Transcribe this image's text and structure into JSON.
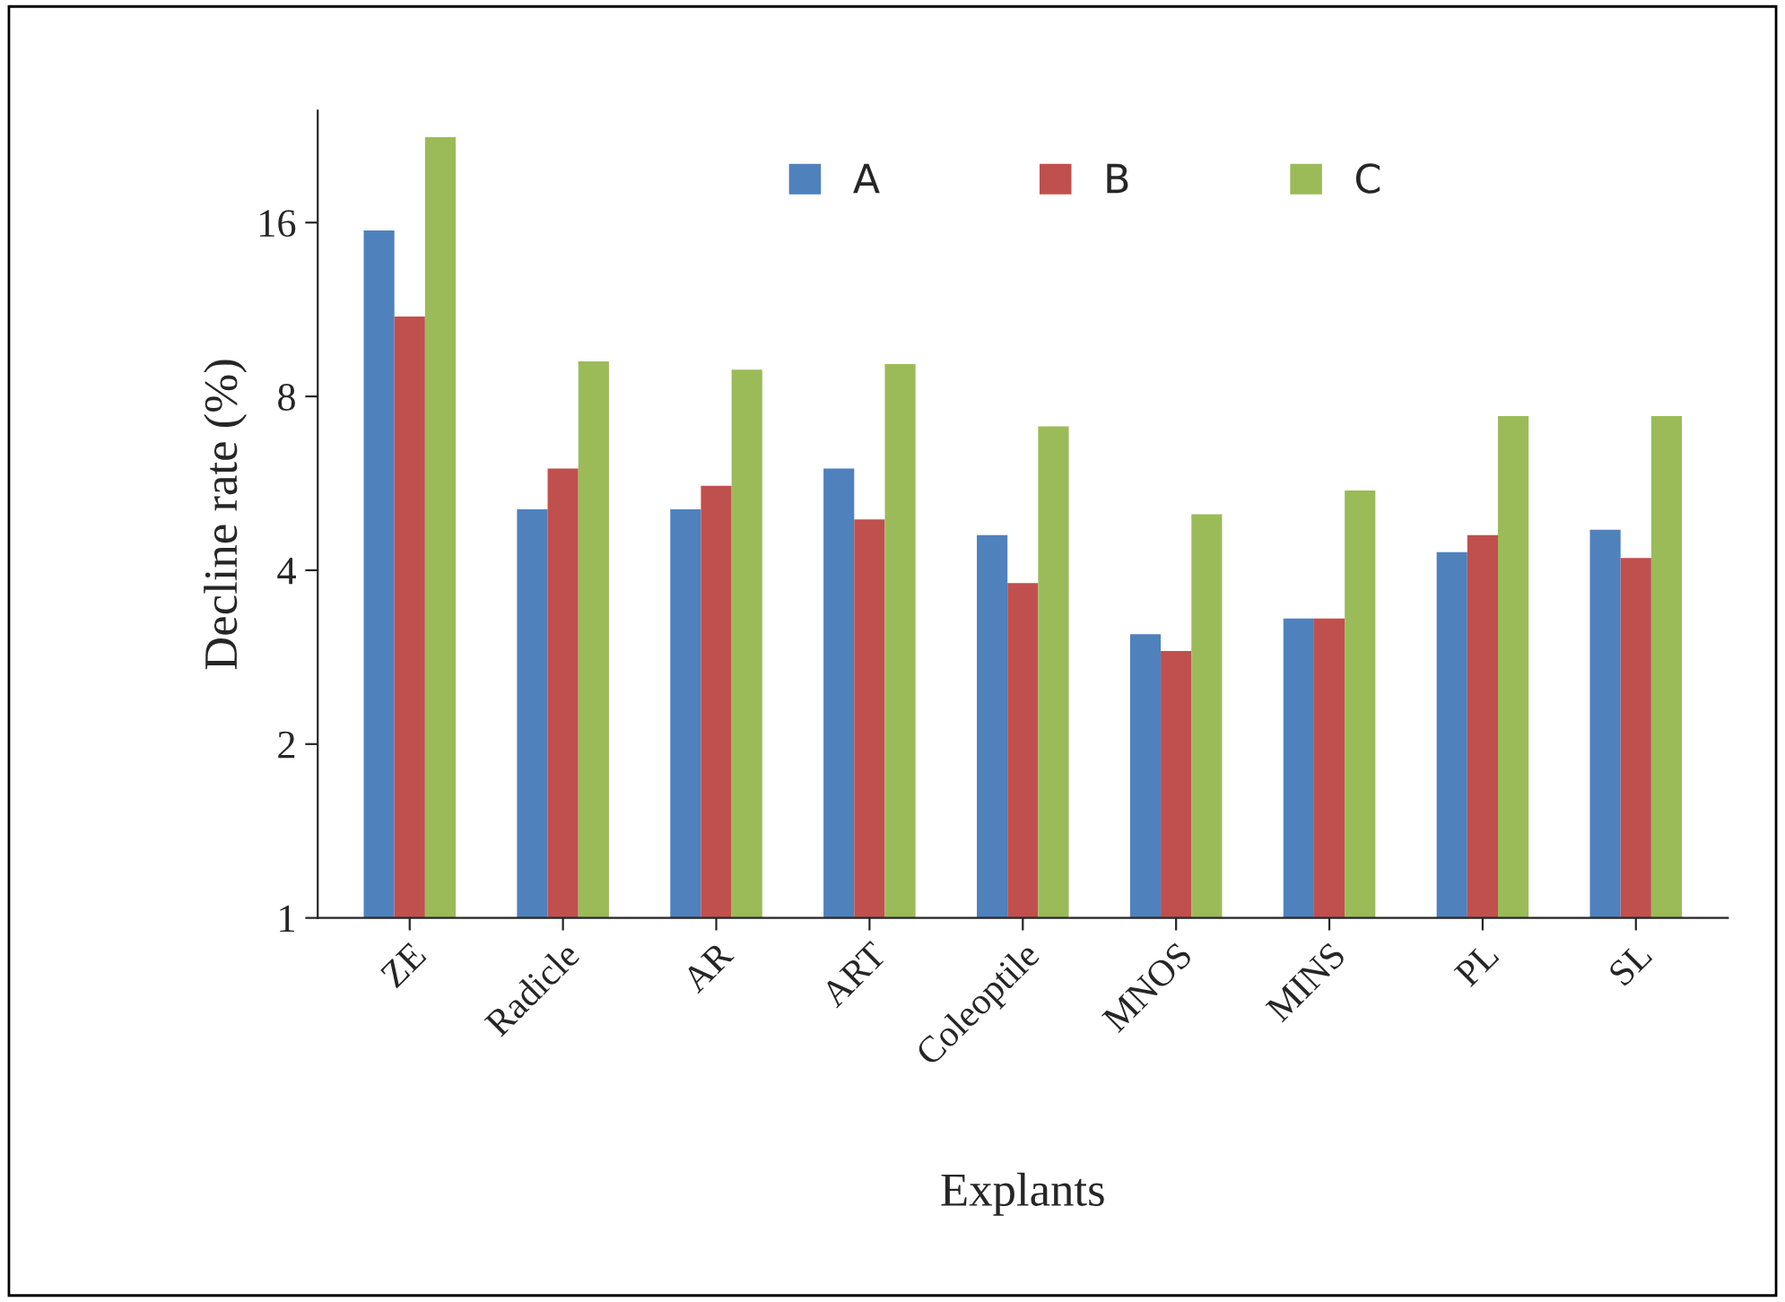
{
  "chart_data": {
    "type": "bar",
    "xlabel": "Explants",
    "ylabel": "Decline rate (%)",
    "categories": [
      "ZE",
      "Radicle",
      "AR",
      "ART",
      "Coleoptile",
      "MNOS",
      "MINS",
      "PL",
      "SL"
    ],
    "series": [
      {
        "name": "A",
        "color": "#4f81bd",
        "values": [
          15.5,
          5.1,
          5.1,
          6.0,
          4.6,
          3.1,
          3.3,
          4.3,
          4.7
        ]
      },
      {
        "name": "B",
        "color": "#c0504d",
        "values": [
          11.0,
          6.0,
          5.6,
          4.9,
          3.8,
          2.9,
          3.3,
          4.6,
          4.2
        ]
      },
      {
        "name": "C",
        "color": "#9bbb59",
        "values": [
          22.5,
          9.2,
          8.9,
          9.1,
          7.1,
          5.0,
          5.5,
          7.4,
          7.4
        ]
      }
    ],
    "log": "y",
    "ylim": [
      1,
      25
    ],
    "yticks": [
      1,
      2,
      4,
      8,
      16
    ],
    "grid": false,
    "legend": "top right"
  }
}
